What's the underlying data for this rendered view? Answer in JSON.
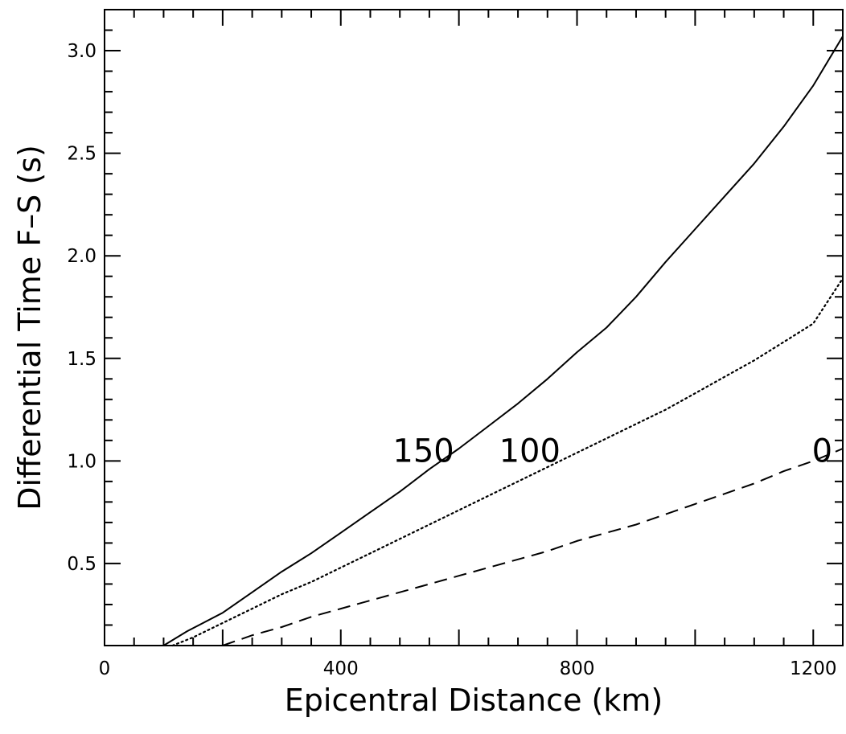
{
  "chart_data": {
    "type": "line",
    "title": "",
    "xlabel": "Epicentral Distance (km)",
    "ylabel": "Differential Time F–S (s)",
    "xlim": [
      0,
      1250
    ],
    "ylim": [
      0.1,
      3.2
    ],
    "x_ticks": [
      "0",
      "400",
      "800",
      "1200"
    ],
    "y_ticks": [
      "0.5",
      "1.0",
      "1.5",
      "2.0",
      "2.5",
      "3.0"
    ],
    "grid": false,
    "legend": "none",
    "series": [
      {
        "name": "150",
        "style": "solid",
        "label_at": [
          540,
          1.05
        ],
        "x": [
          100,
          140,
          200,
          250,
          300,
          350,
          400,
          450,
          500,
          550,
          600,
          650,
          700,
          750,
          800,
          850,
          900,
          950,
          1000,
          1050,
          1100,
          1150,
          1200,
          1250
        ],
        "y": [
          0.1,
          0.17,
          0.26,
          0.36,
          0.46,
          0.55,
          0.65,
          0.75,
          0.85,
          0.96,
          1.06,
          1.17,
          1.28,
          1.4,
          1.53,
          1.65,
          1.8,
          1.97,
          2.13,
          2.29,
          2.45,
          2.63,
          2.83,
          3.07
        ]
      },
      {
        "name": "100",
        "style": "dotted",
        "label_at": [
          720,
          1.05
        ],
        "x": [
          115,
          150,
          200,
          250,
          300,
          350,
          400,
          450,
          500,
          550,
          600,
          650,
          700,
          750,
          800,
          850,
          900,
          950,
          1000,
          1050,
          1100,
          1150,
          1200,
          1250
        ],
        "y": [
          0.1,
          0.14,
          0.21,
          0.28,
          0.35,
          0.41,
          0.48,
          0.55,
          0.62,
          0.69,
          0.76,
          0.83,
          0.9,
          0.97,
          1.04,
          1.11,
          1.18,
          1.25,
          1.33,
          1.41,
          1.49,
          1.58,
          1.67,
          1.89
        ]
      },
      {
        "name": "0",
        "style": "dashed",
        "label_at": [
          1215,
          1.05
        ],
        "x": [
          200,
          250,
          300,
          350,
          400,
          450,
          500,
          550,
          600,
          650,
          700,
          750,
          800,
          850,
          900,
          950,
          1000,
          1050,
          1100,
          1150,
          1200,
          1250
        ],
        "y": [
          0.1,
          0.15,
          0.19,
          0.24,
          0.28,
          0.32,
          0.36,
          0.4,
          0.44,
          0.48,
          0.52,
          0.56,
          0.61,
          0.65,
          0.69,
          0.74,
          0.79,
          0.84,
          0.89,
          0.95,
          1.0,
          1.06
        ]
      }
    ]
  }
}
